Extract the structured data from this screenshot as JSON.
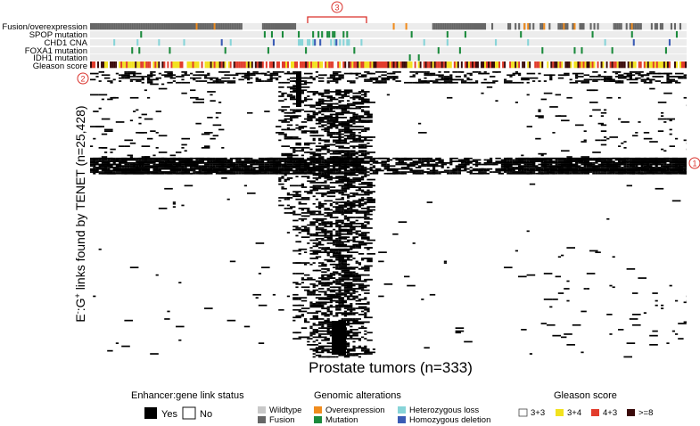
{
  "chart_data": {
    "type": "heatmap",
    "title": "",
    "xlabel": "Prostate tumors (n=333)",
    "ylabel_prefix": "E",
    "ylabel_sup1": "-",
    "ylabel_mid": ":G",
    "ylabel_sup2": "+",
    "ylabel_rest": " links found by TENET (n=25,428)",
    "n_tumors": 333,
    "n_links": 25428,
    "annotation_tracks": [
      {
        "label": "Fusion/overexpression",
        "categories": [
          "Wildtype",
          "Fusion",
          "Overexpression"
        ]
      },
      {
        "label": "SPOP mutation",
        "categories": [
          "Wildtype",
          "Mutation"
        ]
      },
      {
        "label": "CHD1 CNA",
        "categories": [
          "Wildtype",
          "Heterozygous loss",
          "Homozygous deletion"
        ]
      },
      {
        "label": "FOXA1 mutation",
        "categories": [
          "Wildtype",
          "Mutation"
        ]
      },
      {
        "label": "IDH1 mutation",
        "categories": [
          "Wildtype",
          "Mutation"
        ]
      },
      {
        "label": "Gleason score",
        "categories": [
          "3+3",
          "3+4",
          "4+3",
          ">=8"
        ]
      }
    ],
    "callouts": [
      {
        "id": "1",
        "label": "1",
        "note": "horizontal band of links present in most tumors"
      },
      {
        "id": "2",
        "label": "2",
        "note": "top cluster of links"
      },
      {
        "id": "3",
        "label": "3",
        "note": "tumor cluster with dense link activity"
      }
    ],
    "legends": [
      {
        "title": "Enhancer:gene link status",
        "items": [
          {
            "label": "Yes",
            "color": "#000000"
          },
          {
            "label": "No",
            "color": "#ffffff"
          }
        ]
      },
      {
        "title": "Genomic alterations",
        "items": [
          {
            "label": "Wildtype",
            "color": "#c8c8c8"
          },
          {
            "label": "Fusion",
            "color": "#666666"
          },
          {
            "label": "Overexpression",
            "color": "#f08c1e"
          },
          {
            "label": "Mutation",
            "color": "#1b8a3c"
          },
          {
            "label": "Heterozygous loss",
            "color": "#87d4d8"
          },
          {
            "label": "Homozygous deletion",
            "color": "#3a5bb5"
          }
        ]
      },
      {
        "title": "Gleason score",
        "items": [
          {
            "label": "3+3",
            "color": "#ffffff"
          },
          {
            "label": "3+4",
            "color": "#f2e21e"
          },
          {
            "label": "4+3",
            "color": "#e23c2c"
          },
          {
            "label": ">=8",
            "color": "#3a0a0a"
          }
        ]
      }
    ]
  }
}
